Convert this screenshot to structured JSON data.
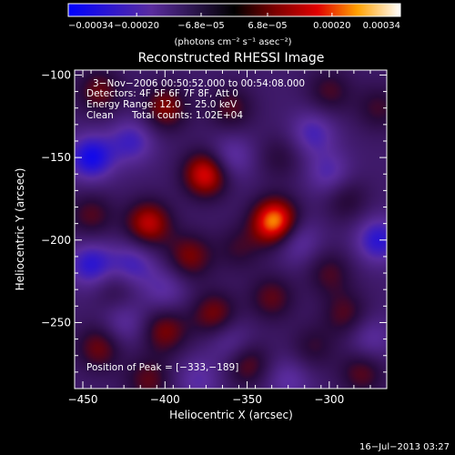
{
  "chart_data": {
    "type": "heatmap",
    "title": "Reconstructed RHESSI Image",
    "xlabel": "Heliocentric X (arcsec)",
    "ylabel": "Heliocentric Y (arcsec)",
    "xlim": [
      -455,
      -265
    ],
    "ylim": [
      -290,
      -97
    ],
    "x_ticks": [
      {
        "value": -450,
        "label": "−450"
      },
      {
        "value": -400,
        "label": "−400"
      },
      {
        "value": -350,
        "label": "−350"
      },
      {
        "value": -300,
        "label": "−300"
      }
    ],
    "y_ticks": [
      {
        "value": -100,
        "label": "−100"
      },
      {
        "value": -150,
        "label": "−150"
      },
      {
        "value": -200,
        "label": "−200"
      },
      {
        "value": -250,
        "label": "−250"
      }
    ],
    "colorbar": {
      "range": [
        -0.00034,
        0.00034
      ],
      "tick_values": [
        -0.00034,
        -0.0002,
        -6.8e-05,
        6.8e-05,
        0.0002,
        0.00034
      ],
      "tick_labels": [
        "−0.00034",
        "−0.00020",
        "−6.8e−05",
        "6.8e−05",
        "0.00020",
        "0.00034"
      ],
      "unit_text": "(photons cm⁻² s⁻¹ asec⁻²)"
    },
    "annotations": {
      "time_range": "3−Nov−2006 00:50:52.000 to 00:54:08.000",
      "detectors": "Detectors: 4F 5F 6F 7F 8F, Att 0",
      "energy": "Energy Range: 12.0 − 25.0 keV",
      "clean": "Clean",
      "counts": "Total counts: 1.02E+04",
      "peak": "Position of Peak = [−333,−189]"
    },
    "peak": [
      -333,
      -189
    ],
    "sources": [
      {
        "x": -333,
        "y": -189,
        "intensity": 0.00034
      },
      {
        "x": -375,
        "y": -160,
        "intensity": 0.00026
      },
      {
        "x": -410,
        "y": -190,
        "intensity": 0.00022
      },
      {
        "x": -385,
        "y": -210,
        "intensity": 0.00016
      },
      {
        "x": -400,
        "y": -120,
        "intensity": 0.00017
      },
      {
        "x": -440,
        "y": -110,
        "intensity": 0.00014
      },
      {
        "x": -445,
        "y": -185,
        "intensity": 0.00012
      },
      {
        "x": -360,
        "y": -120,
        "intensity": 0.00012
      },
      {
        "x": -440,
        "y": -265,
        "intensity": 0.00015
      },
      {
        "x": -400,
        "y": -255,
        "intensity": 0.00016
      },
      {
        "x": -370,
        "y": -245,
        "intensity": 0.00016
      },
      {
        "x": -335,
        "y": -235,
        "intensity": 0.00013
      },
      {
        "x": -290,
        "y": -245,
        "intensity": 0.00012
      },
      {
        "x": -350,
        "y": -275,
        "intensity": 0.00014
      },
      {
        "x": -300,
        "y": -220,
        "intensity": 0.00011
      },
      {
        "x": -300,
        "y": -110,
        "intensity": 0.00011
      },
      {
        "x": -280,
        "y": -280,
        "intensity": 0.00013
      },
      {
        "x": -410,
        "y": -285,
        "intensity": 0.00013
      },
      {
        "x": -290,
        "y": -175,
        "intensity": 0.0001
      },
      {
        "x": -270,
        "y": -120,
        "intensity": 0.0001
      },
      {
        "x": -330,
        "y": -150,
        "intensity": 8e-05
      },
      {
        "x": -355,
        "y": -205,
        "intensity": 9e-05
      },
      {
        "x": -430,
        "y": -230,
        "intensity": 8e-05
      },
      {
        "x": -310,
        "y": -265,
        "intensity": 9e-05
      }
    ],
    "troughs": [
      {
        "x": -445,
        "y": -150,
        "intensity": -0.00022
      },
      {
        "x": -445,
        "y": -215,
        "intensity": -0.00018
      },
      {
        "x": -270,
        "y": -200,
        "intensity": -0.00018
      },
      {
        "x": -420,
        "y": -140,
        "intensity": -0.00014
      },
      {
        "x": -420,
        "y": -215,
        "intensity": -0.00014
      },
      {
        "x": -360,
        "y": -150,
        "intensity": -0.00012
      },
      {
        "x": -310,
        "y": -135,
        "intensity": -0.00013
      },
      {
        "x": -320,
        "y": -200,
        "intensity": -0.00012
      },
      {
        "x": -300,
        "y": -160,
        "intensity": -0.00012
      },
      {
        "x": -400,
        "y": -230,
        "intensity": -0.0001
      },
      {
        "x": -425,
        "y": -250,
        "intensity": -0.0001
      },
      {
        "x": -360,
        "y": -262,
        "intensity": -0.0001
      },
      {
        "x": -275,
        "y": -260,
        "intensity": -0.0001
      },
      {
        "x": -325,
        "y": -285,
        "intensity": -0.0001
      },
      {
        "x": -380,
        "y": -285,
        "intensity": -0.0001
      }
    ]
  },
  "footer": {
    "timestamp": "16−Jul−2013 03:27"
  }
}
